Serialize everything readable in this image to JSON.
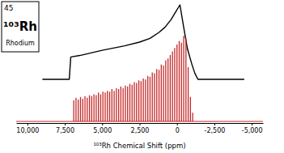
{
  "chart_data": [
    {
      "type": "line",
      "annotations": [
        "45",
        "¹⁰³Rh",
        "Rhodium"
      ],
      "x": [
        9000,
        7200,
        7100,
        6500,
        5000,
        3500,
        2500,
        1800,
        1200,
        800,
        400,
        100,
        -200,
        -450,
        -700,
        -1000,
        -1200,
        -1400,
        -4500
      ],
      "values": [
        0,
        0,
        30,
        32,
        39,
        45,
        50,
        55,
        63,
        70,
        80,
        90,
        100,
        70,
        41,
        20,
        8,
        0,
        0
      ],
      "color": "#000000",
      "xlim": [
        10750,
        -5750
      ],
      "ylim": [
        0,
        100
      ],
      "tick_labels": false
    },
    {
      "type": "bar",
      "x": [
        6900,
        6750,
        6600,
        6450,
        6300,
        6150,
        6000,
        5850,
        5700,
        5550,
        5400,
        5250,
        5100,
        4950,
        4800,
        4650,
        4500,
        4350,
        4200,
        4050,
        3900,
        3750,
        3600,
        3450,
        3300,
        3150,
        3000,
        2850,
        2700,
        2550,
        2400,
        2250,
        2100,
        1950,
        1800,
        1650,
        1500,
        1350,
        1200,
        1050,
        900,
        750,
        600,
        450,
        300,
        150,
        0,
        -150,
        -300,
        -450,
        -600,
        -750,
        -900,
        -1050
      ],
      "values": [
        24,
        27,
        25,
        28,
        26,
        29,
        27,
        30,
        29,
        31,
        30,
        33,
        31,
        34,
        33,
        35,
        34,
        37,
        35,
        38,
        37,
        40,
        38,
        41,
        40,
        43,
        42,
        45,
        44,
        47,
        46,
        49,
        48,
        52,
        51,
        56,
        55,
        60,
        59,
        65,
        64,
        70,
        72,
        76,
        80,
        84,
        88,
        92,
        90,
        98,
        95,
        62,
        28,
        10
      ],
      "color": "#c62828",
      "xlim": [
        10750,
        -5750
      ],
      "ylim": [
        0,
        100
      ],
      "xticks": [
        {
          "value": 10000,
          "label": "10,000"
        },
        {
          "value": 7500,
          "label": "7,500"
        },
        {
          "value": 5000,
          "label": "5,000"
        },
        {
          "value": 2500,
          "label": "2,500"
        },
        0,
        {
          "value": -2500,
          "label": "-2,500"
        },
        {
          "value": -5000,
          "label": "-5,000"
        }
      ],
      "xlabel": "¹⁰³Rh Chemical Shift (ppm)",
      "tick_labels": "x"
    }
  ]
}
